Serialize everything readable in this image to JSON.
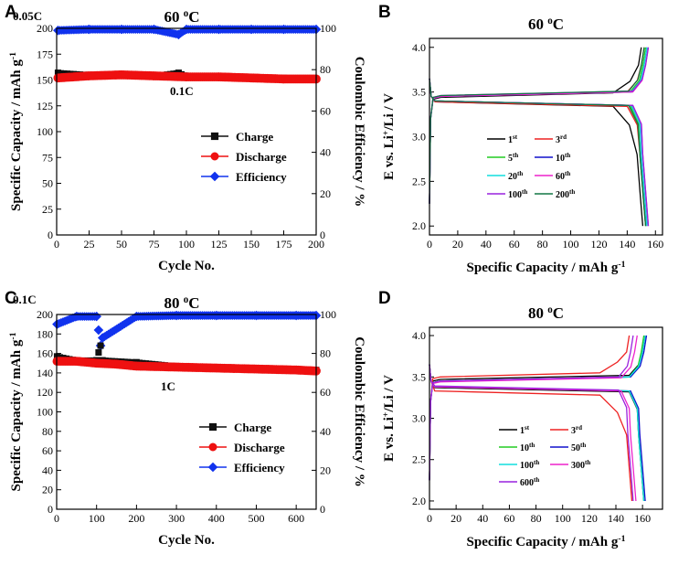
{
  "chart_data": [
    {
      "panel": "A",
      "type": "scatter",
      "title": "60 °C",
      "xlabel": "Cycle No.",
      "ylabel": "Specific Capacity / mAh g⁻¹",
      "y2label": "Coulombic Efficiency / %",
      "xlim": [
        0,
        200
      ],
      "ylim": [
        0,
        200
      ],
      "y2lim": [
        0,
        100
      ],
      "xticks": [
        0,
        25,
        50,
        75,
        100,
        125,
        150,
        175,
        200
      ],
      "yticks": [
        0,
        25,
        50,
        75,
        100,
        125,
        150,
        175,
        200
      ],
      "y2ticks": [
        0,
        20,
        40,
        60,
        80,
        100
      ],
      "annotations": [
        {
          "text": "0.05C"
        },
        {
          "text": "0.1C"
        }
      ],
      "legend": [
        "Charge",
        "Discharge",
        "Efficiency"
      ],
      "series": [
        {
          "name": "Charge",
          "axis": "left",
          "color": "#111111",
          "marker": "square",
          "x": [
            1,
            25,
            50,
            75,
            94,
            100,
            125,
            150,
            175,
            200
          ],
          "y": [
            157,
            155,
            155,
            154,
            157,
            154,
            153,
            152,
            152,
            151
          ]
        },
        {
          "name": "Discharge",
          "axis": "left",
          "color": "#ee1111",
          "marker": "circle",
          "x": [
            1,
            25,
            50,
            75,
            100,
            125,
            150,
            175,
            200
          ],
          "y": [
            152,
            154,
            155,
            154,
            153,
            153,
            152,
            151,
            151
          ]
        },
        {
          "name": "Efficiency",
          "axis": "right",
          "color": "#1133ee",
          "marker": "diamond",
          "x": [
            1,
            25,
            50,
            75,
            94,
            100,
            125,
            150,
            175,
            200
          ],
          "y": [
            99,
            99.5,
            99.5,
            99.5,
            97,
            99.5,
            99.5,
            99.5,
            99.5,
            99.5
          ]
        }
      ]
    },
    {
      "panel": "B",
      "type": "line",
      "title": "60 °C",
      "xlabel": "Specific Capacity / mAh g⁻¹",
      "ylabel": "E vs. Li⁺/Li / V",
      "xlim": [
        0,
        165
      ],
      "ylim": [
        1.9,
        4.1
      ],
      "xticks": [
        0,
        20,
        40,
        60,
        80,
        100,
        120,
        140,
        160
      ],
      "yticks": [
        2.0,
        2.5,
        3.0,
        3.5,
        4.0
      ],
      "legend_labels": [
        {
          "n": "1",
          "s": "st"
        },
        {
          "n": "3",
          "s": "rd"
        },
        {
          "n": "5",
          "s": "th"
        },
        {
          "n": "10",
          "s": "th"
        },
        {
          "n": "20",
          "s": "th"
        },
        {
          "n": "60",
          "s": "th"
        },
        {
          "n": "100",
          "s": "th"
        },
        {
          "n": "200",
          "s": "th"
        }
      ],
      "series": [
        {
          "name": "1st",
          "color": "#000000",
          "charge_end": 150,
          "discharge_end": 151,
          "charge_plateau": 3.44,
          "discharge_plateau": 3.38,
          "knee": 130
        },
        {
          "name": "3rd",
          "color": "#ee2222",
          "charge_end": 152,
          "discharge_end": 153,
          "charge_plateau": 3.45,
          "discharge_plateau": 3.38,
          "knee": 140
        },
        {
          "name": "5th",
          "color": "#22cc22",
          "charge_end": 153,
          "discharge_end": 153,
          "charge_plateau": 3.45,
          "discharge_plateau": 3.39,
          "knee": 142
        },
        {
          "name": "10th",
          "color": "#1111cc",
          "charge_end": 154,
          "discharge_end": 154,
          "charge_plateau": 3.45,
          "discharge_plateau": 3.39,
          "knee": 143
        },
        {
          "name": "20th",
          "color": "#11dddd",
          "charge_end": 154,
          "discharge_end": 154,
          "charge_plateau": 3.45,
          "discharge_plateau": 3.39,
          "knee": 143
        },
        {
          "name": "60th",
          "color": "#ee22cc",
          "charge_end": 155,
          "discharge_end": 155,
          "charge_plateau": 3.45,
          "discharge_plateau": 3.39,
          "knee": 144
        },
        {
          "name": "100th",
          "color": "#9922dd",
          "charge_end": 155,
          "discharge_end": 155,
          "charge_plateau": 3.46,
          "discharge_plateau": 3.39,
          "knee": 144
        },
        {
          "name": "200th",
          "color": "#117744",
          "charge_end": 152,
          "discharge_end": 153,
          "charge_plateau": 3.46,
          "discharge_plateau": 3.39,
          "knee": 141
        }
      ]
    },
    {
      "panel": "C",
      "type": "scatter",
      "title": "80 °C",
      "xlabel": "Cycle No.",
      "ylabel": "Specific Capacity / mAh g⁻¹",
      "y2label": "Coulombic Efficiency / %",
      "xlim": [
        0,
        650
      ],
      "ylim": [
        0,
        200
      ],
      "y2lim": [
        0,
        100
      ],
      "xticks": [
        0,
        100,
        200,
        300,
        400,
        500,
        600
      ],
      "yticks": [
        0,
        20,
        40,
        60,
        80,
        100,
        120,
        140,
        160,
        180,
        200
      ],
      "y2ticks": [
        0,
        20,
        40,
        60,
        80,
        100
      ],
      "annotations": [
        {
          "text": "0.1C"
        },
        {
          "text": "1C"
        }
      ],
      "legend": [
        "Charge",
        "Discharge",
        "Efficiency"
      ],
      "series": [
        {
          "name": "Charge",
          "axis": "left",
          "color": "#111111",
          "marker": "square",
          "x": [
            1,
            50,
            100,
            105,
            110,
            115,
            200,
            300,
            400,
            500,
            600,
            650
          ],
          "y": [
            157,
            153,
            153,
            161,
            168,
            153,
            151,
            147,
            146,
            145,
            144,
            143
          ]
        },
        {
          "name": "Discharge",
          "axis": "left",
          "color": "#ee1111",
          "marker": "circle",
          "x": [
            1,
            50,
            100,
            150,
            200,
            300,
            400,
            500,
            600,
            650
          ],
          "y": [
            152,
            152,
            150,
            149,
            147,
            146,
            145,
            144,
            143,
            142
          ]
        },
        {
          "name": "Efficiency",
          "axis": "right",
          "color": "#1133ee",
          "marker": "diamond",
          "x": [
            1,
            50,
            100,
            105,
            110,
            115,
            200,
            300,
            400,
            500,
            600,
            650
          ],
          "y": [
            95,
            99,
            99,
            92,
            84,
            88,
            99,
            99.5,
            99.5,
            99.5,
            99.5,
            99.5
          ]
        }
      ]
    },
    {
      "panel": "D",
      "type": "line",
      "title": "80 °C",
      "xlabel": "Specific Capacity / mAh g⁻¹",
      "ylabel": "E vs. Li⁺/Li / V",
      "xlim": [
        0,
        175
      ],
      "ylim": [
        1.9,
        4.1
      ],
      "xticks": [
        0,
        20,
        40,
        60,
        80,
        100,
        120,
        140,
        160
      ],
      "yticks": [
        2.0,
        2.5,
        3.0,
        3.5,
        4.0
      ],
      "legend_labels": [
        {
          "n": "1",
          "s": "st"
        },
        {
          "n": "3",
          "s": "rd"
        },
        {
          "n": "10",
          "s": "th"
        },
        {
          "n": "50",
          "s": "th"
        },
        {
          "n": "100",
          "s": "th"
        },
        {
          "n": "300",
          "s": "th"
        },
        {
          "n": "600",
          "s": "th"
        }
      ],
      "series": [
        {
          "name": "1st",
          "color": "#000000",
          "charge_end": 162,
          "discharge_end": 161,
          "charge_plateau": 3.47,
          "discharge_plateau": 3.36,
          "knee": 150
        },
        {
          "name": "3rd",
          "color": "#ee2222",
          "charge_end": 150,
          "discharge_end": 152,
          "charge_plateau": 3.5,
          "discharge_plateau": 3.32,
          "knee": 128
        },
        {
          "name": "10th",
          "color": "#22cc22",
          "charge_end": 161,
          "discharge_end": 161,
          "charge_plateau": 3.45,
          "discharge_plateau": 3.37,
          "knee": 150
        },
        {
          "name": "50th",
          "color": "#1111cc",
          "charge_end": 163,
          "discharge_end": 162,
          "charge_plateau": 3.45,
          "discharge_plateau": 3.37,
          "knee": 151
        },
        {
          "name": "100th",
          "color": "#11dddd",
          "charge_end": 162,
          "discharge_end": 161,
          "charge_plateau": 3.45,
          "discharge_plateau": 3.37,
          "knee": 150
        },
        {
          "name": "300th",
          "color": "#ee22cc",
          "charge_end": 156,
          "discharge_end": 155,
          "charge_plateau": 3.44,
          "discharge_plateau": 3.37,
          "knee": 144
        },
        {
          "name": "600th",
          "color": "#9922dd",
          "charge_end": 153,
          "discharge_end": 153,
          "charge_plateau": 3.45,
          "discharge_plateau": 3.38,
          "knee": 142
        }
      ]
    }
  ]
}
